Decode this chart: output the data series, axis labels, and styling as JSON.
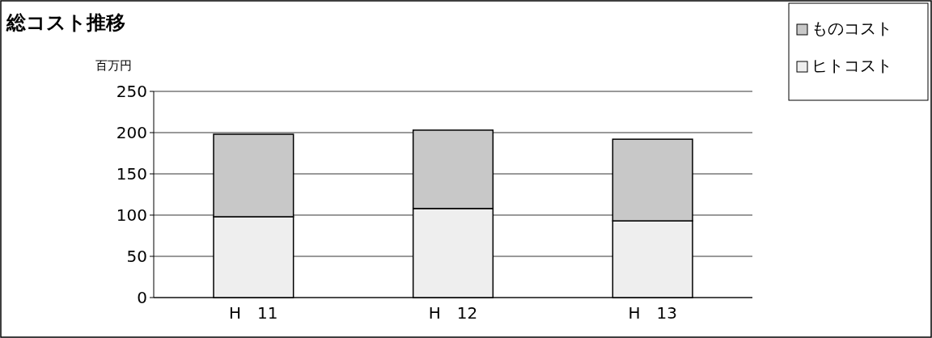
{
  "chart_data": {
    "type": "bar",
    "title": "総コスト推移",
    "ylabel": "百万円",
    "categories": [
      "H　11",
      "H　12",
      "H　13"
    ],
    "stacked": true,
    "series": [
      {
        "name": "ヒトコスト",
        "color": "#eeeeee",
        "values": [
          98,
          108,
          93
        ]
      },
      {
        "name": "ものコスト",
        "color": "#c8c8c8",
        "values": [
          100,
          95,
          99
        ]
      }
    ],
    "ylim": [
      0,
      250
    ],
    "yticks": [
      0,
      50,
      100,
      150,
      200,
      250
    ],
    "grid": "y",
    "legend": "top right"
  }
}
